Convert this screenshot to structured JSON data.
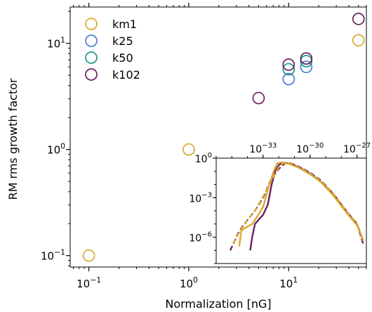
{
  "chart_data": {
    "type": "scatter",
    "xlabel": "Normalization [nG]",
    "ylabel": "RM rms growth factor",
    "xscale": "log",
    "yscale": "log",
    "xlim": [
      0.065,
      60
    ],
    "ylim": [
      0.078,
      22
    ],
    "x_ticks": [
      {
        "value": 0.1,
        "base": "10",
        "exp": "−1"
      },
      {
        "value": 1,
        "base": "10",
        "exp": "0"
      },
      {
        "value": 10,
        "base": "10",
        "exp": "1"
      }
    ],
    "y_ticks": [
      {
        "value": 0.1,
        "base": "10",
        "exp": "−1"
      },
      {
        "value": 1,
        "base": "10",
        "exp": "0"
      },
      {
        "value": 10,
        "base": "10",
        "exp": "1"
      }
    ],
    "legend_position": "top-left",
    "marker": "open-circle",
    "series": [
      {
        "name": "km1",
        "color": "#d9a833",
        "points": [
          [
            0.1,
            0.1
          ],
          [
            1,
            1
          ],
          [
            50,
            10.7
          ]
        ]
      },
      {
        "name": "k25",
        "color": "#4f7bd6",
        "points": [
          [
            10,
            4.6
          ],
          [
            15,
            6.0
          ]
        ]
      },
      {
        "name": "k50",
        "color": "#1a9988",
        "points": [
          [
            10,
            5.7
          ],
          [
            15,
            6.8
          ]
        ]
      },
      {
        "name": "k102",
        "color": "#6b2060",
        "points": [
          [
            5,
            3.05
          ],
          [
            10,
            6.3
          ],
          [
            15,
            7.2
          ],
          [
            50,
            17.0
          ]
        ]
      }
    ],
    "inset": {
      "type": "line",
      "xscale": "log",
      "yscale": "log",
      "xlim": [
        1e-36,
        4e-27
      ],
      "ylim": [
        1e-08,
        1
      ],
      "x_ticks": [
        {
          "value": 1e-33,
          "base": "10",
          "exp": "−33"
        },
        {
          "value": 1e-30,
          "base": "10",
          "exp": "−30"
        },
        {
          "value": 1e-27,
          "base": "10",
          "exp": "−27"
        }
      ],
      "y_ticks": [
        {
          "value": 1,
          "base": "10",
          "exp": "0"
        },
        {
          "value": 0.001,
          "base": "10",
          "exp": "−3"
        },
        {
          "value": 1e-06,
          "base": "10",
          "exp": "−6"
        }
      ],
      "curves": [
        {
          "color": "#6b2060",
          "style": "dashed",
          "points": [
            [
              8e-36,
              1e-07
            ],
            [
              3e-35,
              3e-06
            ],
            [
              1e-34,
              2e-05
            ],
            [
              3e-34,
              0.0001
            ],
            [
              1e-33,
              0.001
            ],
            [
              3e-33,
              0.02
            ],
            [
              1e-32,
              0.15
            ],
            [
              2.5e-32,
              0.4
            ],
            [
              6e-32,
              0.4
            ],
            [
              2e-31,
              0.22
            ],
            [
              1e-30,
              0.08
            ],
            [
              5e-30,
              0.02
            ],
            [
              3e-29,
              0.002
            ],
            [
              2e-28,
              0.0001
            ],
            [
              1e-27,
              1e-05
            ],
            [
              2.5e-27,
              3e-07
            ]
          ]
        },
        {
          "color": "#6b2060",
          "style": "solid",
          "points": [
            [
              1.5e-34,
              1e-07
            ],
            [
              2e-34,
              1e-06
            ],
            [
              3e-34,
              1e-05
            ],
            [
              5e-34,
              2e-05
            ],
            [
              1e-33,
              5e-05
            ],
            [
              2e-33,
              0.0003
            ],
            [
              3.5e-33,
              0.01
            ],
            [
              6e-33,
              0.1
            ],
            [
              1e-32,
              0.3
            ],
            [
              2e-32,
              0.45
            ],
            [
              6e-32,
              0.38
            ],
            [
              2e-31,
              0.2
            ],
            [
              1e-30,
              0.07
            ],
            [
              5e-30,
              0.015
            ],
            [
              3e-29,
              0.002
            ],
            [
              2e-28,
              0.0001
            ],
            [
              1e-27,
              1e-05
            ],
            [
              2.5e-27,
              5e-07
            ]
          ]
        },
        {
          "color": "#d9a833",
          "style": "dashed",
          "points": [
            [
              1.2e-35,
              3e-07
            ],
            [
              3e-35,
              2.5e-06
            ],
            [
              1e-34,
              2e-05
            ],
            [
              3e-34,
              0.0001
            ],
            [
              1e-33,
              0.0012
            ],
            [
              3e-33,
              0.015
            ],
            [
              1e-32,
              0.2
            ],
            [
              2e-32,
              0.42
            ],
            [
              6e-32,
              0.38
            ],
            [
              2e-31,
              0.2
            ],
            [
              1e-30,
              0.07
            ],
            [
              5e-30,
              0.018
            ],
            [
              3e-29,
              0.002
            ],
            [
              2e-28,
              0.0001
            ],
            [
              1e-27,
              1e-05
            ],
            [
              2.5e-27,
              5e-07
            ]
          ]
        },
        {
          "color": "#d9a833",
          "style": "solid",
          "points": [
            [
              3e-35,
              2e-07
            ],
            [
              4e-35,
              3e-06
            ],
            [
              7e-35,
              5e-06
            ],
            [
              2e-34,
              1e-05
            ],
            [
              5e-34,
              5e-05
            ],
            [
              1e-33,
              0.0002
            ],
            [
              2.5e-33,
              0.01
            ],
            [
              5e-33,
              0.12
            ],
            [
              8e-33,
              0.4
            ],
            [
              1.5e-32,
              0.48
            ],
            [
              5e-32,
              0.35
            ],
            [
              2e-31,
              0.18
            ],
            [
              1e-30,
              0.06
            ],
            [
              5e-30,
              0.015
            ],
            [
              3e-29,
              0.0015
            ],
            [
              2e-28,
              8e-05
            ],
            [
              1e-27,
              8e-06
            ],
            [
              2.5e-27,
              6e-07
            ]
          ]
        }
      ]
    }
  }
}
